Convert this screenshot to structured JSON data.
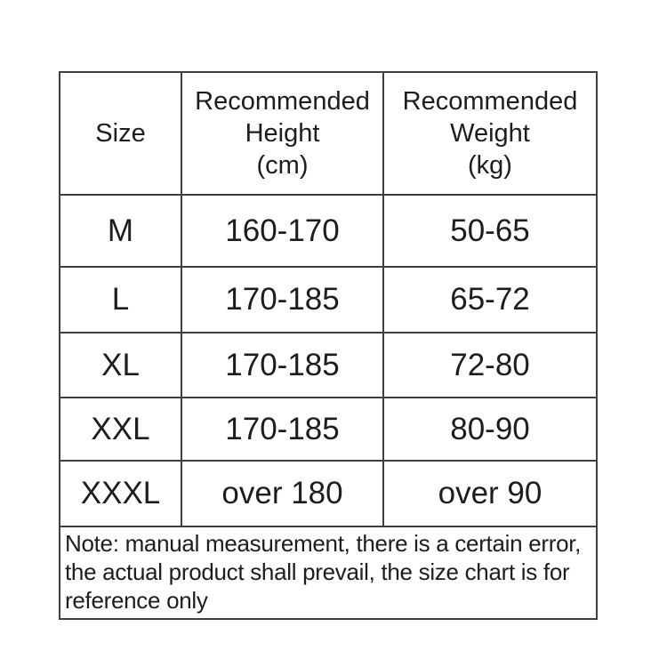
{
  "size_chart": {
    "columns": [
      {
        "label": "Size",
        "lines": [
          "Size"
        ]
      },
      {
        "label": "Recommended Height (cm)",
        "lines": [
          "Recommended",
          "Height",
          "(cm)"
        ]
      },
      {
        "label": "Recommended Weight (kg)",
        "lines": [
          "Recommended",
          "Weight",
          "(kg)"
        ]
      }
    ],
    "rows": [
      {
        "size": "M",
        "height_cm": "160-170",
        "weight_kg": "50-65"
      },
      {
        "size": "L",
        "height_cm": "170-185",
        "weight_kg": "65-72"
      },
      {
        "size": "XL",
        "height_cm": "170-185",
        "weight_kg": "72-80"
      },
      {
        "size": "XXL",
        "height_cm": "170-185",
        "weight_kg": "80-90"
      },
      {
        "size": "XXXL",
        "height_cm": "over 180",
        "weight_kg": "over 90"
      }
    ],
    "note": {
      "text": "Note: manual measurement, there is a certain error, the actual product shall prevail, the size chart is for reference only",
      "lines": [
        "Note: manual measurement, there is a certain error,",
        "the actual product shall prevail, the size chart is for",
        "reference only"
      ]
    }
  },
  "colors": {
    "border": "#3f3f3f",
    "text": "#1d1d1d",
    "background": "#ffffff"
  }
}
